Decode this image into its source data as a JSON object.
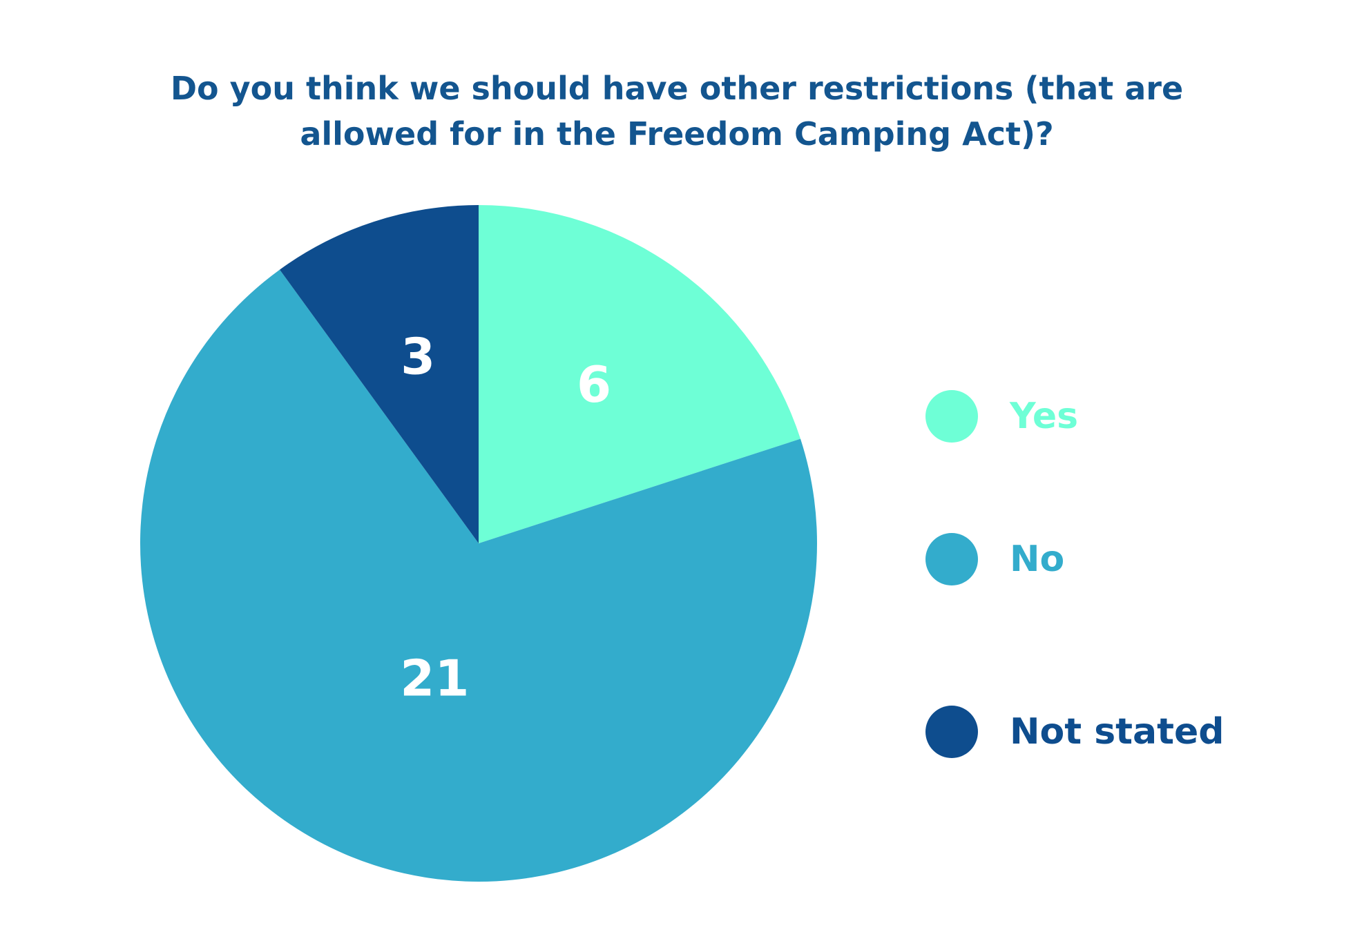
{
  "chart_data": {
    "type": "pie",
    "title": "Do you think we should have other restrictions (that are allowed for in the Freedom Camping Act)?",
    "categories": [
      "Yes",
      "No",
      "Not stated"
    ],
    "values": [
      6,
      21,
      3
    ],
    "colors": [
      "#6effd6",
      "#33accc",
      "#0e4d8e"
    ],
    "label_color": "#ffffff",
    "title_color": "#13558f",
    "legend_placement": "right",
    "start_angle": "12 o'clock",
    "direction": "clockwise"
  }
}
